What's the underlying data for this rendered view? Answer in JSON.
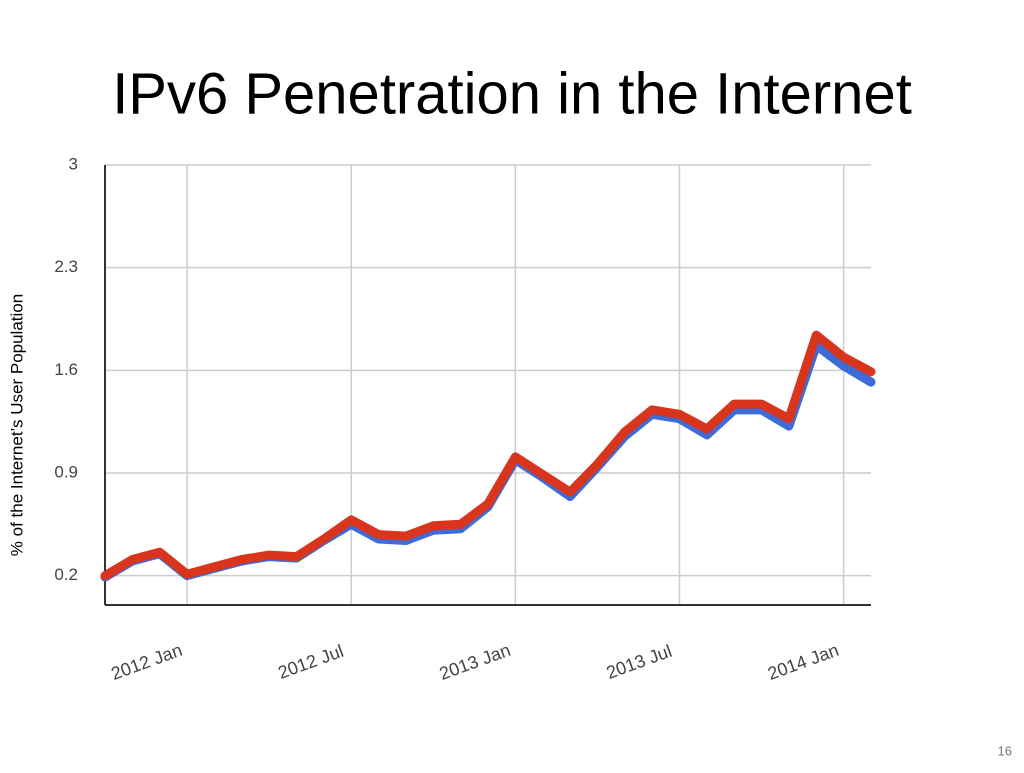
{
  "page_number": "16",
  "chart_data": {
    "type": "line",
    "title": "IPv6 Penetration in the Internet",
    "y_label": "% of the Internet’s User Population",
    "x": [
      "2011-10",
      "2011-11",
      "2011-12",
      "2012-01",
      "2012-02",
      "2012-03",
      "2012-04",
      "2012-05",
      "2012-06",
      "2012-07",
      "2012-08",
      "2012-09",
      "2012-10",
      "2012-11",
      "2012-12",
      "2013-01",
      "2013-02",
      "2013-03",
      "2013-04",
      "2013-05",
      "2013-06",
      "2013-07",
      "2013-08",
      "2013-09",
      "2013-10",
      "2013-11",
      "2013-12",
      "2014-01",
      "2014-02"
    ],
    "series": [
      {
        "color": "#3d6bd8",
        "values": [
          0.19,
          0.3,
          0.35,
          0.2,
          0.25,
          0.3,
          0.33,
          0.32,
          0.44,
          0.55,
          0.45,
          0.44,
          0.51,
          0.52,
          0.67,
          0.99,
          0.87,
          0.74,
          0.94,
          1.15,
          1.3,
          1.27,
          1.16,
          1.33,
          1.33,
          1.22,
          1.77,
          1.63,
          1.52
        ]
      },
      {
        "color": "#d9341c",
        "values": [
          0.2,
          0.31,
          0.36,
          0.21,
          0.26,
          0.31,
          0.34,
          0.33,
          0.45,
          0.58,
          0.48,
          0.47,
          0.54,
          0.55,
          0.69,
          1.01,
          0.89,
          0.77,
          0.96,
          1.18,
          1.33,
          1.3,
          1.2,
          1.37,
          1.37,
          1.27,
          1.84,
          1.69,
          1.59
        ]
      }
    ],
    "xlim": [
      "2011-10",
      "2014-02"
    ],
    "xticks": [
      {
        "value": "2012-01",
        "label": "2012 Jan"
      },
      {
        "value": "2012-07",
        "label": "2012 Jul"
      },
      {
        "value": "2013-01",
        "label": "2013 Jan"
      },
      {
        "value": "2013-07",
        "label": "2013 Jul"
      },
      {
        "value": "2014-01",
        "label": "2014 Jan"
      }
    ],
    "ylim": [
      0,
      3
    ],
    "yticks": [
      0.2,
      0.9,
      1.6,
      2.3,
      3
    ],
    "grid": true
  }
}
